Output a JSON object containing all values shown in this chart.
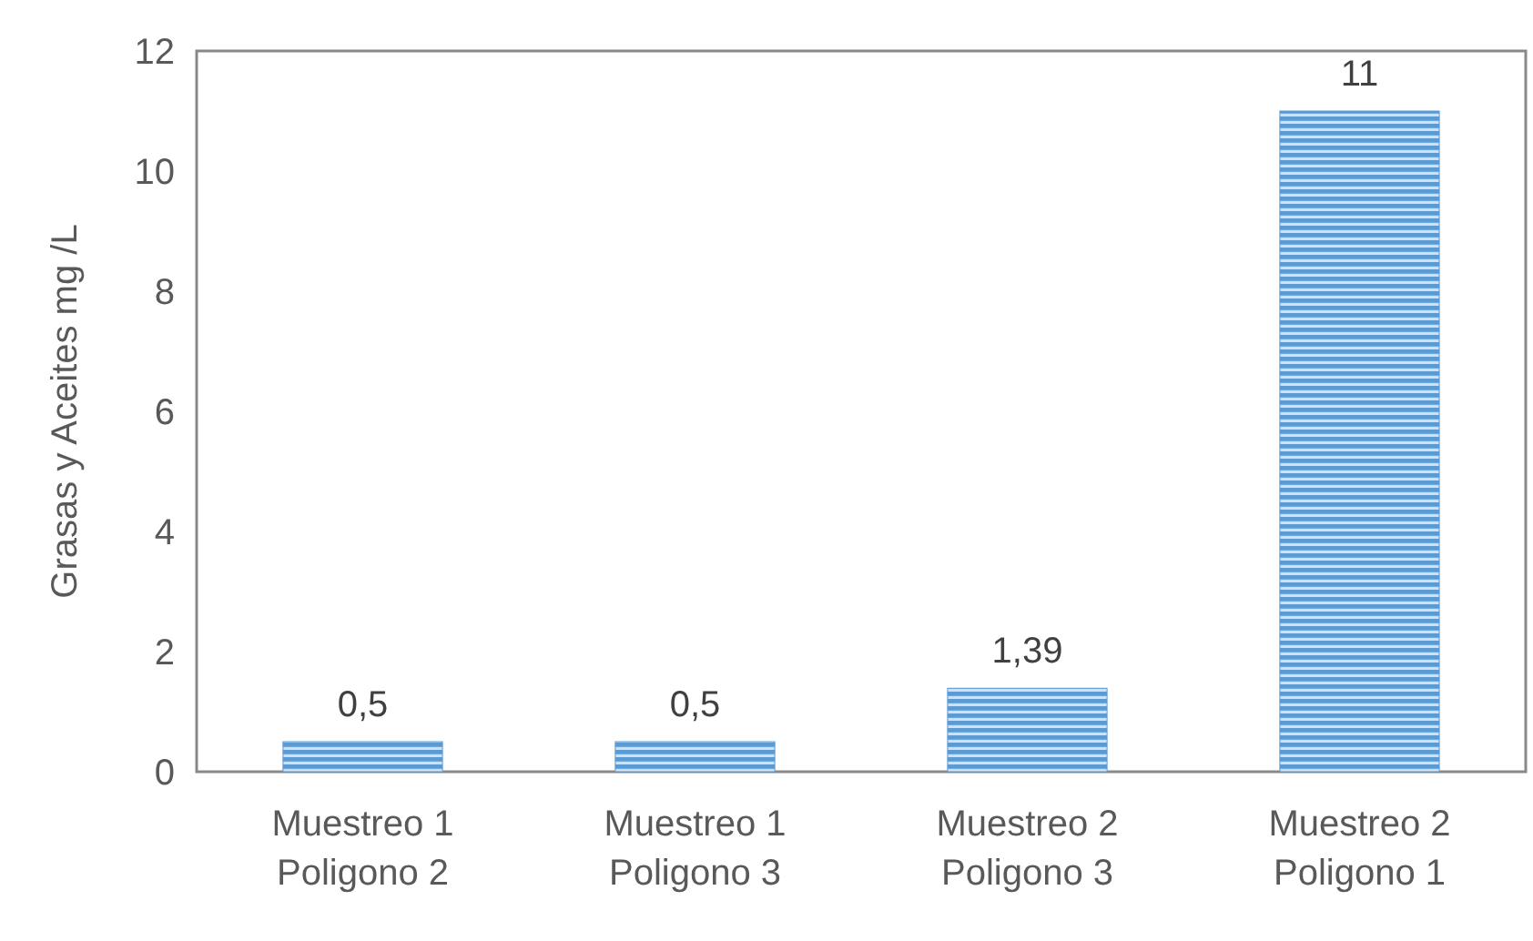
{
  "chart_data": {
    "type": "bar",
    "ylabel": "Grasas y Aceites mg /L",
    "categories": [
      "Muestreo 1 Poligono 2",
      "Muestreo 1 Poligono 3",
      "Muestreo 2 Poligono 3",
      "Muestreo 2 Poligono 1"
    ],
    "values": [
      0.5,
      0.5,
      1.39,
      11
    ],
    "value_labels": [
      "0,5",
      "0,5",
      "1,39",
      "11"
    ],
    "color": "#5b9bd5",
    "ylim": [
      0,
      12
    ],
    "yticks": [
      0,
      2,
      4,
      6,
      8,
      10,
      12
    ],
    "grid": false
  }
}
